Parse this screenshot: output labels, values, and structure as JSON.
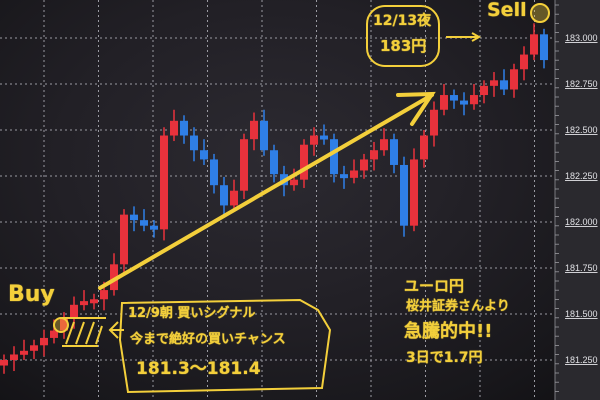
{
  "chart_data": {
    "type": "candlestick",
    "title": "",
    "xlabel": "",
    "ylabel": "",
    "ylim": [
      181.12,
      183.2
    ],
    "grid": true,
    "y_ticks": [
      "183.000",
      "182.750",
      "182.500",
      "182.250",
      "182.000",
      "181.750",
      "181.500",
      "181.250"
    ],
    "y_tick_values": [
      183.0,
      182.75,
      182.5,
      182.25,
      182.0,
      181.75,
      181.5,
      181.25
    ],
    "close": [
      181.25,
      181.28,
      181.3,
      181.33,
      181.37,
      181.41,
      181.48,
      181.55,
      181.57,
      181.58,
      181.63,
      181.77,
      182.04,
      182.01,
      181.98,
      181.96,
      182.47,
      182.55,
      182.47,
      182.39,
      182.34,
      182.2,
      182.09,
      182.17,
      182.45,
      182.55,
      182.39,
      182.26,
      182.2,
      182.23,
      182.42,
      182.47,
      182.45,
      182.26,
      182.24,
      182.28,
      182.34,
      182.39,
      182.45,
      182.31,
      181.98,
      182.34,
      182.47,
      182.61,
      182.69,
      182.66,
      182.64,
      182.69,
      182.74,
      182.77,
      182.72,
      182.83,
      182.91,
      183.02,
      182.88
    ],
    "colors": {
      "up": "#e8323c",
      "down": "#2f7fe6",
      "background": "#1b1a1e",
      "grid": "#9a9aa2",
      "annotation": "#f3cf3b"
    }
  },
  "annotations": {
    "buy_label": "Buy",
    "sell_label": "Sell",
    "sell_note": {
      "line1": "12/13夜",
      "line2": "183円"
    },
    "buy_note": {
      "line1": "12/9朝 買いシグナル",
      "line2": "今まで絶好の買いチャンス",
      "line3": "181.3〜181.4"
    },
    "summary": {
      "line1": "ユーロ円",
      "line2": "桜井証券さんより",
      "line3": "急騰的中!!",
      "line4": "3日で1.7円"
    }
  }
}
